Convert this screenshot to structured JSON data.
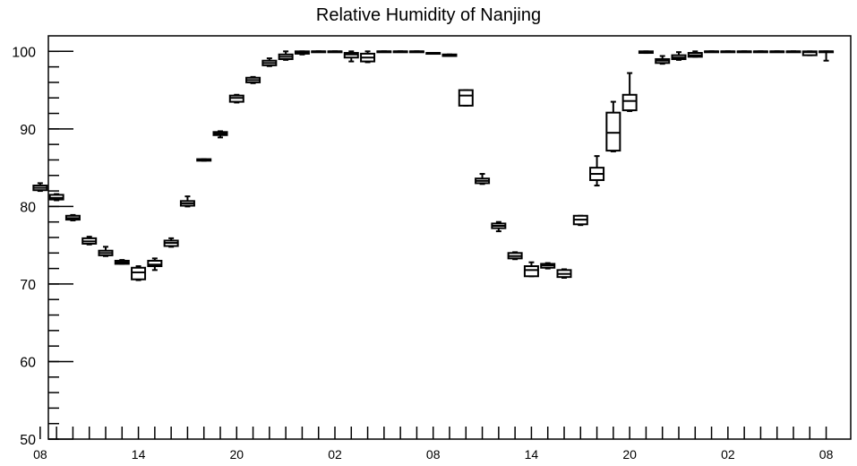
{
  "chart_data": {
    "type": "box",
    "title": "Relative Humidity of Nanjing",
    "xlabel": "",
    "ylabel": "",
    "ylim": [
      50,
      102
    ],
    "xlim": [
      0.5,
      49.5
    ],
    "yticks": [
      50,
      60,
      70,
      80,
      90,
      100
    ],
    "xtick_labels": [
      {
        "x": 0,
        "label": "08"
      },
      {
        "x": 6,
        "label": "14"
      },
      {
        "x": 12,
        "label": "20"
      },
      {
        "x": 18,
        "label": "02"
      },
      {
        "x": 24,
        "label": "08"
      },
      {
        "x": 30,
        "label": "14"
      },
      {
        "x": 36,
        "label": "20"
      },
      {
        "x": 42,
        "label": "02"
      },
      {
        "x": 48,
        "label": "08"
      }
    ],
    "series": [
      {
        "values": [
          {
            "x": 0,
            "min": 82.0,
            "q1": 82.1,
            "median": 82.4,
            "q3": 82.7,
            "max": 83.0
          },
          {
            "x": 1,
            "min": 80.8,
            "q1": 80.9,
            "median": 81.1,
            "q3": 81.5,
            "max": 81.6
          },
          {
            "x": 2,
            "min": 78.2,
            "q1": 78.3,
            "median": 78.5,
            "q3": 78.8,
            "max": 78.9
          },
          {
            "x": 3,
            "min": 75.1,
            "q1": 75.2,
            "median": 75.5,
            "q3": 75.9,
            "max": 76.1
          },
          {
            "x": 4,
            "min": 73.6,
            "q1": 73.7,
            "median": 74.0,
            "q3": 74.3,
            "max": 74.8
          },
          {
            "x": 5,
            "min": 72.6,
            "q1": 72.6,
            "median": 72.8,
            "q3": 73.0,
            "max": 73.1
          },
          {
            "x": 6,
            "min": 70.5,
            "q1": 70.6,
            "median": 71.5,
            "q3": 72.1,
            "max": 72.3
          },
          {
            "x": 7,
            "min": 71.8,
            "q1": 72.3,
            "median": 72.5,
            "q3": 73.0,
            "max": 73.3
          },
          {
            "x": 8,
            "min": 74.8,
            "q1": 74.9,
            "median": 75.3,
            "q3": 75.6,
            "max": 75.9
          },
          {
            "x": 9,
            "min": 80.0,
            "q1": 80.1,
            "median": 80.4,
            "q3": 80.7,
            "max": 81.3
          },
          {
            "x": 10,
            "min": 85.9,
            "q1": 85.9,
            "median": 86.0,
            "q3": 86.1,
            "max": 86.1
          },
          {
            "x": 11,
            "min": 88.9,
            "q1": 89.2,
            "median": 89.4,
            "q3": 89.6,
            "max": 89.7
          },
          {
            "x": 12,
            "min": 93.4,
            "q1": 93.5,
            "median": 94.0,
            "q3": 94.3,
            "max": 94.4
          },
          {
            "x": 13,
            "min": 95.9,
            "q1": 96.0,
            "median": 96.3,
            "q3": 96.6,
            "max": 96.7
          },
          {
            "x": 14,
            "min": 98.1,
            "q1": 98.2,
            "median": 98.5,
            "q3": 98.8,
            "max": 99.1
          },
          {
            "x": 15,
            "min": 98.9,
            "q1": 99.0,
            "median": 99.3,
            "q3": 99.6,
            "max": 100.0
          },
          {
            "x": 16,
            "min": 99.6,
            "q1": 99.7,
            "median": 99.85,
            "q3": 100.0,
            "max": 100.0
          },
          {
            "x": 17,
            "min": 100.0,
            "q1": 100.0,
            "median": 100.0,
            "q3": 100.0,
            "max": 100.0
          },
          {
            "x": 18,
            "min": 100.0,
            "q1": 100.0,
            "median": 100.0,
            "q3": 100.0,
            "max": 100.0
          },
          {
            "x": 19,
            "min": 98.7,
            "q1": 99.2,
            "median": 99.6,
            "q3": 99.8,
            "max": 100.0
          },
          {
            "x": 20,
            "min": 98.6,
            "q1": 98.7,
            "median": 99.2,
            "q3": 99.7,
            "max": 100.0
          },
          {
            "x": 21,
            "min": 100.0,
            "q1": 100.0,
            "median": 100.0,
            "q3": 100.0,
            "max": 100.0
          },
          {
            "x": 22,
            "min": 100.0,
            "q1": 100.0,
            "median": 100.0,
            "q3": 100.0,
            "max": 100.0
          },
          {
            "x": 23,
            "min": 100.0,
            "q1": 100.0,
            "median": 100.0,
            "q3": 100.0,
            "max": 100.0
          },
          {
            "x": 24,
            "min": 99.7,
            "q1": 99.7,
            "median": 99.8,
            "q3": 99.8,
            "max": 99.8
          },
          {
            "x": 25,
            "min": 99.4,
            "q1": 99.4,
            "median": 99.5,
            "q3": 99.6,
            "max": 99.6
          },
          {
            "x": 26,
            "min": 93.0,
            "q1": 93.0,
            "median": 94.3,
            "q3": 95.0,
            "max": 95.0
          },
          {
            "x": 27,
            "min": 82.9,
            "q1": 83.0,
            "median": 83.3,
            "q3": 83.6,
            "max": 84.2
          },
          {
            "x": 28,
            "min": 76.8,
            "q1": 77.2,
            "median": 77.5,
            "q3": 77.8,
            "max": 78.0
          },
          {
            "x": 29,
            "min": 73.2,
            "q1": 73.3,
            "median": 73.6,
            "q3": 74.0,
            "max": 74.1
          },
          {
            "x": 30,
            "min": 71.0,
            "q1": 71.0,
            "median": 71.8,
            "q3": 72.3,
            "max": 72.8
          },
          {
            "x": 31,
            "min": 72.0,
            "q1": 72.1,
            "median": 72.4,
            "q3": 72.6,
            "max": 72.7
          },
          {
            "x": 32,
            "min": 70.8,
            "q1": 70.9,
            "median": 71.3,
            "q3": 71.8,
            "max": 71.9
          },
          {
            "x": 33,
            "min": 77.6,
            "q1": 77.7,
            "median": 78.3,
            "q3": 78.8,
            "max": 78.8
          },
          {
            "x": 34,
            "min": 82.7,
            "q1": 83.4,
            "median": 84.2,
            "q3": 85.0,
            "max": 86.5
          },
          {
            "x": 35,
            "min": 87.1,
            "q1": 87.2,
            "median": 89.5,
            "q3": 92.1,
            "max": 93.5
          },
          {
            "x": 36,
            "min": 92.3,
            "q1": 92.4,
            "median": 93.6,
            "q3": 94.4,
            "max": 97.2
          },
          {
            "x": 37,
            "min": 99.8,
            "q1": 99.8,
            "median": 99.9,
            "q3": 100.0,
            "max": 100.0
          },
          {
            "x": 38,
            "min": 98.4,
            "q1": 98.5,
            "median": 98.8,
            "q3": 99.0,
            "max": 99.4
          },
          {
            "x": 39,
            "min": 98.9,
            "q1": 99.0,
            "median": 99.2,
            "q3": 99.5,
            "max": 99.9
          },
          {
            "x": 40,
            "min": 99.3,
            "q1": 99.3,
            "median": 99.5,
            "q3": 99.8,
            "max": 100.0
          },
          {
            "x": 41,
            "min": 100.0,
            "q1": 100.0,
            "median": 100.0,
            "q3": 100.0,
            "max": 100.0
          },
          {
            "x": 42,
            "min": 100.0,
            "q1": 100.0,
            "median": 100.0,
            "q3": 100.0,
            "max": 100.0
          },
          {
            "x": 43,
            "min": 100.0,
            "q1": 100.0,
            "median": 100.0,
            "q3": 100.0,
            "max": 100.0
          },
          {
            "x": 44,
            "min": 100.0,
            "q1": 100.0,
            "median": 100.0,
            "q3": 100.0,
            "max": 100.0
          },
          {
            "x": 45,
            "min": 100.0,
            "q1": 100.0,
            "median": 100.0,
            "q3": 100.0,
            "max": 100.0
          },
          {
            "x": 46,
            "min": 100.0,
            "q1": 100.0,
            "median": 100.0,
            "q3": 100.0,
            "max": 100.0
          },
          {
            "x": 47,
            "min": 99.5,
            "q1": 99.5,
            "median": 99.9,
            "q3": 100.0,
            "max": 100.0
          },
          {
            "x": 48,
            "min": 98.8,
            "q1": 100.0,
            "median": 100.0,
            "q3": 100.0,
            "max": 100.0
          }
        ]
      }
    ],
    "grid": false,
    "legend": "none",
    "colors": {
      "line": "#000000",
      "background": "#ffffff"
    }
  }
}
